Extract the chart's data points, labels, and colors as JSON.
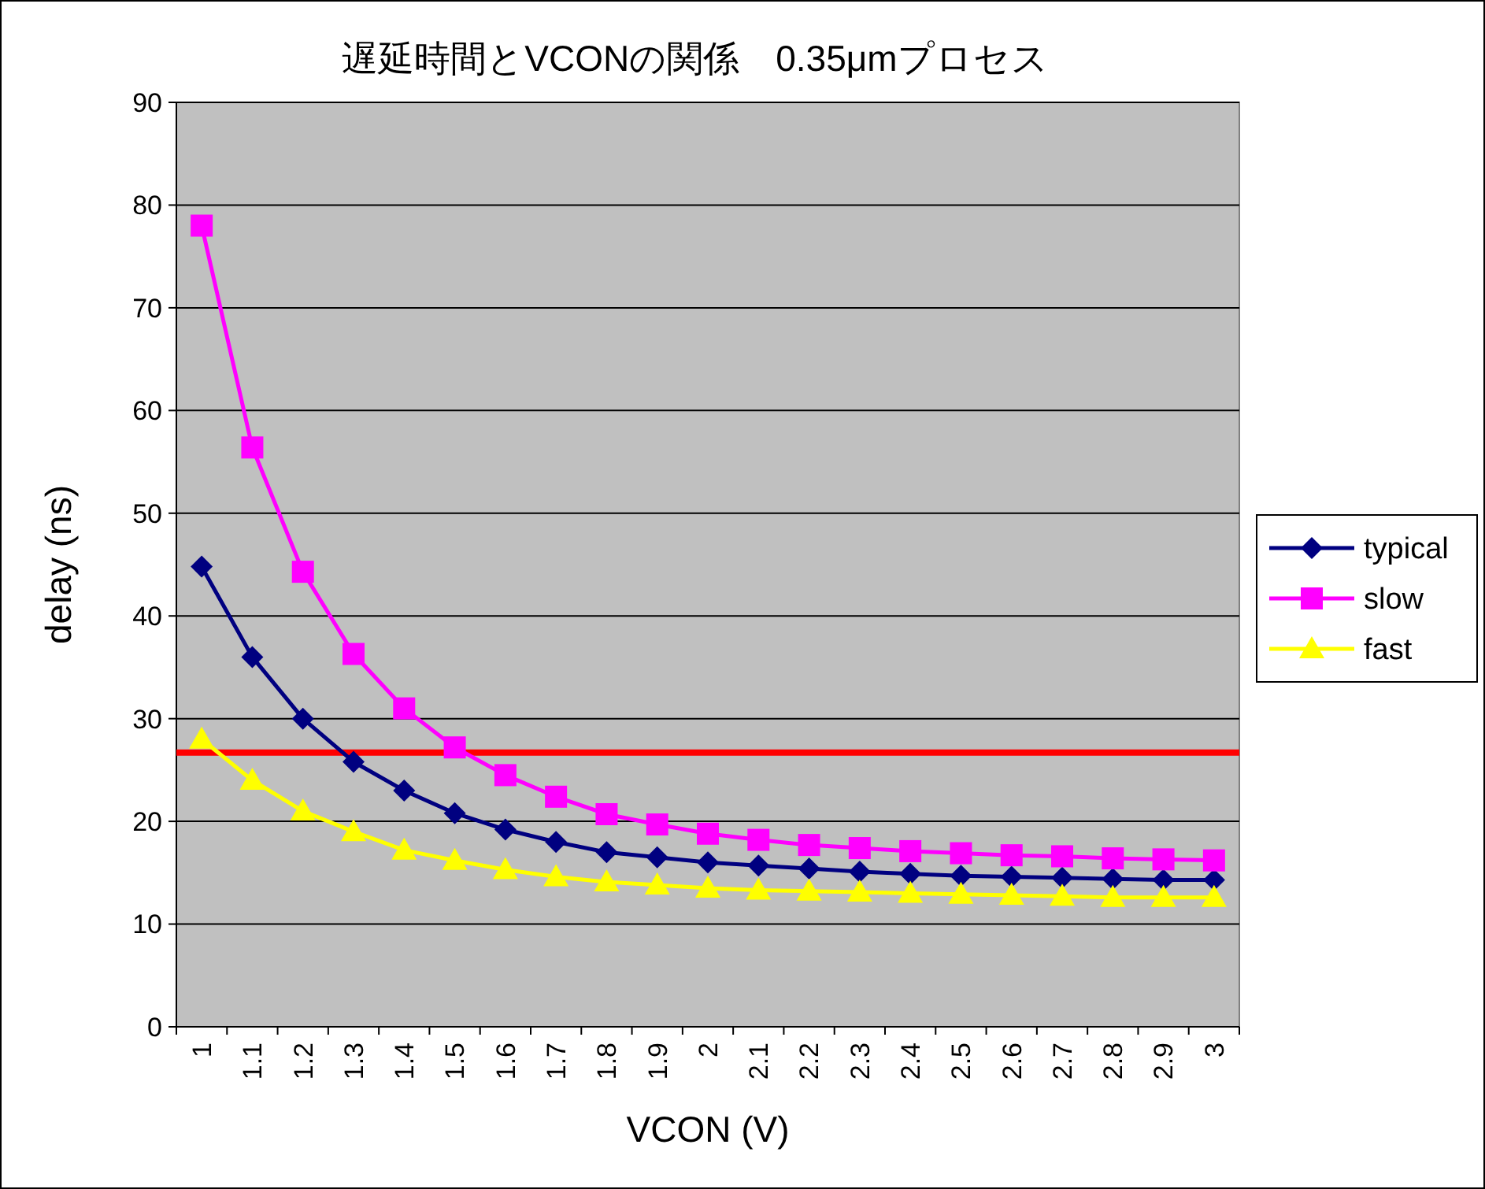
{
  "chart_data": {
    "type": "line",
    "title": "遅延時間とVCONの関係　0.35μmプロセス",
    "xlabel": "VCON (V)",
    "ylabel": "delay (ns)",
    "categories": [
      "1",
      "1.1",
      "1.2",
      "1.3",
      "1.4",
      "1.5",
      "1.6",
      "1.7",
      "1.8",
      "1.9",
      "2",
      "2.1",
      "2.2",
      "2.3",
      "2.4",
      "2.5",
      "2.6",
      "2.7",
      "2.8",
      "2.9",
      "3"
    ],
    "series": [
      {
        "name": "typical",
        "color": "#000080",
        "marker": "diamond",
        "values": [
          44.8,
          36,
          30,
          25.8,
          23,
          20.8,
          19.2,
          18,
          17,
          16.5,
          16,
          15.7,
          15.4,
          15.1,
          14.9,
          14.7,
          14.6,
          14.5,
          14.4,
          14.3,
          14.3
        ]
      },
      {
        "name": "slow",
        "color": "#ff00ff",
        "marker": "square",
        "values": [
          78,
          56.4,
          44.3,
          36.3,
          31,
          27.2,
          24.5,
          22.4,
          20.7,
          19.7,
          18.8,
          18.2,
          17.7,
          17.4,
          17.1,
          16.9,
          16.7,
          16.6,
          16.4,
          16.3,
          16.2
        ]
      },
      {
        "name": "fast",
        "color": "#ffff00",
        "marker": "triangle",
        "values": [
          28,
          24,
          21,
          19,
          17.2,
          16.2,
          15.3,
          14.6,
          14.1,
          13.8,
          13.5,
          13.3,
          13.2,
          13.1,
          13,
          12.9,
          12.8,
          12.7,
          12.6,
          12.6,
          12.6
        ]
      }
    ],
    "ylim": [
      0,
      90
    ],
    "yticks": [
      0,
      10,
      20,
      30,
      40,
      50,
      60,
      70,
      80,
      90
    ],
    "grid": "y",
    "legend": "right",
    "ref_lines": [
      {
        "axis": "y",
        "value": 26.7,
        "color": "#ff0000"
      }
    ]
  }
}
